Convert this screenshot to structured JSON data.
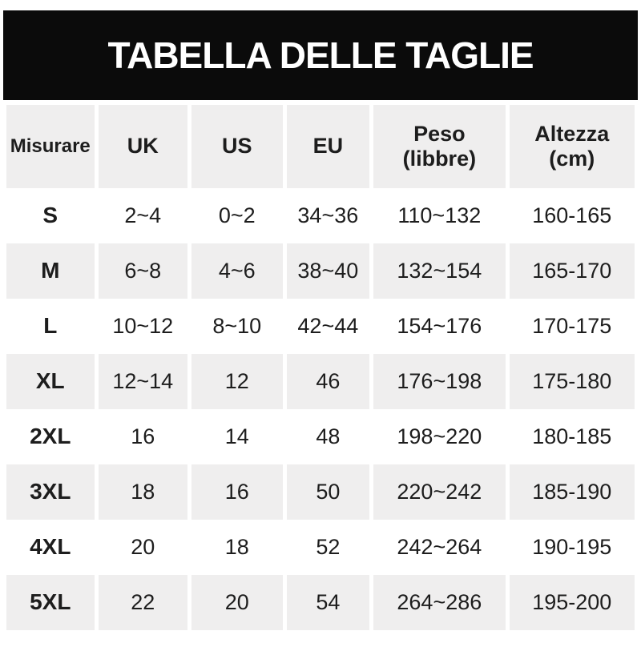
{
  "banner": {
    "title": "TABELLA DELLE TAGLIE"
  },
  "table": {
    "headers": [
      {
        "label": "Misurare",
        "sub": ""
      },
      {
        "label": "UK",
        "sub": ""
      },
      {
        "label": "US",
        "sub": ""
      },
      {
        "label": "EU",
        "sub": ""
      },
      {
        "label": "Peso",
        "sub": "(libbre)"
      },
      {
        "label": "Altezza",
        "sub": "(cm)"
      }
    ],
    "rows": [
      [
        "S",
        "2~4",
        "0~2",
        "34~36",
        "110~132",
        "160-165"
      ],
      [
        "M",
        "6~8",
        "4~6",
        "38~40",
        "132~154",
        "165-170"
      ],
      [
        "L",
        "10~12",
        "8~10",
        "42~44",
        "154~176",
        "170-175"
      ],
      [
        "XL",
        "12~14",
        "12",
        "46",
        "176~198",
        "175-180"
      ],
      [
        "2XL",
        "16",
        "14",
        "48",
        "198~220",
        "180-185"
      ],
      [
        "3XL",
        "18",
        "16",
        "50",
        "220~242",
        "185-190"
      ],
      [
        "4XL",
        "20",
        "18",
        "52",
        "242~264",
        "190-195"
      ],
      [
        "5XL",
        "22",
        "20",
        "54",
        "264~286",
        "195-200"
      ]
    ]
  },
  "colors": {
    "banner_bg": "#0b0b0b",
    "stripe_bg": "#efeeee",
    "text": "#1d1d1d",
    "title_text": "#ffffff"
  },
  "chart_data": {
    "type": "table",
    "title": "TABELLA DELLE TAGLIE",
    "columns": [
      "Misurare",
      "UK",
      "US",
      "EU",
      "Peso (libbre)",
      "Altezza (cm)"
    ],
    "rows": [
      [
        "S",
        "2~4",
        "0~2",
        "34~36",
        "110~132",
        "160-165"
      ],
      [
        "M",
        "6~8",
        "4~6",
        "38~40",
        "132~154",
        "165-170"
      ],
      [
        "L",
        "10~12",
        "8~10",
        "42~44",
        "154~176",
        "170-175"
      ],
      [
        "XL",
        "12~14",
        "12",
        "46",
        "176~198",
        "175-180"
      ],
      [
        "2XL",
        "16",
        "14",
        "48",
        "198~220",
        "180-185"
      ],
      [
        "3XL",
        "18",
        "16",
        "50",
        "220~242",
        "185-190"
      ],
      [
        "4XL",
        "20",
        "18",
        "52",
        "242~264",
        "190-195"
      ],
      [
        "5XL",
        "22",
        "20",
        "54",
        "264~286",
        "195-200"
      ]
    ],
    "layout": {
      "header_row_shaded": true,
      "alternating_row_shading": "odd data rows shaded (M, XL, 3XL, 5XL)",
      "column_separators": "thin white gaps"
    }
  }
}
